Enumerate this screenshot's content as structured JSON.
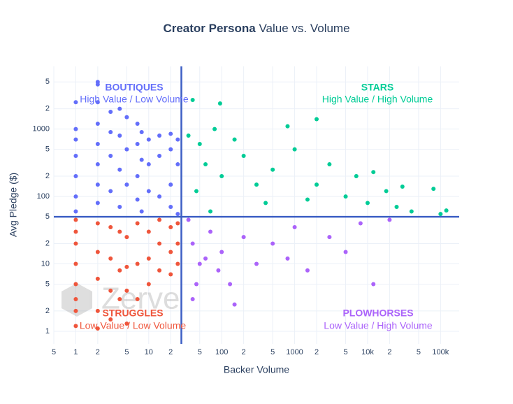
{
  "chart_data": {
    "type": "scatter",
    "title": {
      "bold": "Creator Persona",
      "text": "Value vs. Volume"
    },
    "x_label": "Backer Volume",
    "y_label": "Avg Pledge ($)",
    "watermark": "Zerve",
    "log_x": true,
    "log_y": true,
    "grid": true,
    "xlim": [
      0.5,
      180000
    ],
    "ylim": [
      0.65,
      8500
    ],
    "xticks": [
      {
        "value": 0.5,
        "label": "5"
      },
      1,
      2,
      5,
      10,
      {
        "value": 20,
        "label": "2"
      },
      {
        "value": 50,
        "label": "5"
      },
      100,
      {
        "value": 200,
        "label": "2"
      },
      {
        "value": 500,
        "label": "5"
      },
      1000,
      {
        "value": 2000,
        "label": "2"
      },
      {
        "value": 5000,
        "label": "5"
      },
      {
        "value": 10000,
        "label": "10k"
      },
      {
        "value": 20000,
        "label": "2"
      },
      {
        "value": 50000,
        "label": "5"
      },
      {
        "value": 100000,
        "label": "100k"
      }
    ],
    "yticks": [
      1,
      2,
      5,
      10,
      {
        "value": 20,
        "label": "2"
      },
      {
        "value": 50,
        "label": "5"
      },
      100,
      {
        "value": 200,
        "label": "2"
      },
      {
        "value": 500,
        "label": "5"
      },
      1000,
      {
        "value": 2000,
        "label": "2"
      },
      {
        "value": 5000,
        "label": "5"
      }
    ],
    "x_threshold": 28,
    "y_threshold": 50,
    "threshold_color": "#3d5fc4",
    "series": [
      {
        "name": "BOUTIQUES",
        "subtitle": "High Value / Low Volume",
        "color": "#636efa",
        "x": [
          1,
          1,
          1,
          1,
          1,
          1,
          1,
          2,
          2,
          2,
          2,
          2,
          2,
          2,
          2,
          3,
          3,
          3,
          3,
          4,
          4,
          4,
          4,
          5,
          5,
          5,
          7,
          7,
          7,
          7,
          8,
          8,
          8,
          10,
          10,
          10,
          14,
          14,
          14,
          20,
          20,
          20,
          20,
          25,
          25,
          25
        ],
        "values": [
          2500,
          1000,
          700,
          400,
          200,
          100,
          60,
          5000,
          4600,
          2500,
          1200,
          600,
          300,
          150,
          80,
          1800,
          900,
          400,
          120,
          2000,
          800,
          250,
          70,
          1500,
          500,
          150,
          1200,
          600,
          200,
          90,
          900,
          350,
          60,
          700,
          300,
          120,
          800,
          400,
          100,
          850,
          500,
          150,
          70,
          700,
          300,
          55
        ]
      },
      {
        "name": "STARS",
        "subtitle": "High Value / High Volume",
        "color": "#00cc96",
        "x": [
          40,
          95,
          35,
          50,
          60,
          80,
          100,
          150,
          200,
          300,
          500,
          800,
          1000,
          2000,
          2000,
          3000,
          5000,
          7000,
          10000,
          12000,
          18000,
          25000,
          30000,
          40000,
          80000,
          100000,
          120000,
          45,
          70,
          400,
          1500
        ],
        "values": [
          2700,
          2400,
          800,
          600,
          300,
          1000,
          200,
          700,
          400,
          150,
          250,
          1100,
          500,
          1400,
          150,
          300,
          100,
          200,
          80,
          230,
          120,
          70,
          140,
          60,
          130,
          55,
          62,
          120,
          60,
          80,
          90
        ]
      },
      {
        "name": "STRUGGLES",
        "subtitle": "Low Value / Low Volume",
        "color": "#ef553b",
        "x": [
          1,
          1,
          1,
          1,
          1,
          1,
          1,
          1,
          2,
          2,
          2,
          2,
          2,
          3,
          3,
          3,
          3,
          4,
          4,
          4,
          5,
          5,
          5,
          5,
          7,
          7,
          7,
          10,
          10,
          10,
          14,
          14,
          14,
          20,
          20,
          20,
          25,
          25,
          25
        ],
        "values": [
          45,
          30,
          20,
          10,
          5,
          3,
          2,
          1.2,
          40,
          15,
          6,
          2,
          1.1,
          35,
          12,
          4,
          1.5,
          30,
          8,
          3,
          25,
          9,
          4,
          1.3,
          40,
          10,
          3,
          30,
          12,
          5,
          45,
          20,
          8,
          35,
          15,
          7,
          40,
          20,
          10
        ]
      },
      {
        "name": "PLOWHORSES",
        "subtitle": "Low Value / High Volume",
        "color": "#ab63fa",
        "x": [
          35,
          40,
          45,
          50,
          70,
          90,
          100,
          130,
          200,
          300,
          500,
          800,
          1000,
          1500,
          3000,
          5000,
          8000,
          12000,
          20000,
          40,
          150,
          60
        ],
        "values": [
          45,
          20,
          5,
          10,
          30,
          8,
          15,
          5,
          25,
          10,
          20,
          12,
          35,
          8,
          25,
          15,
          40,
          5,
          45,
          3,
          2.5,
          12
        ]
      }
    ]
  }
}
